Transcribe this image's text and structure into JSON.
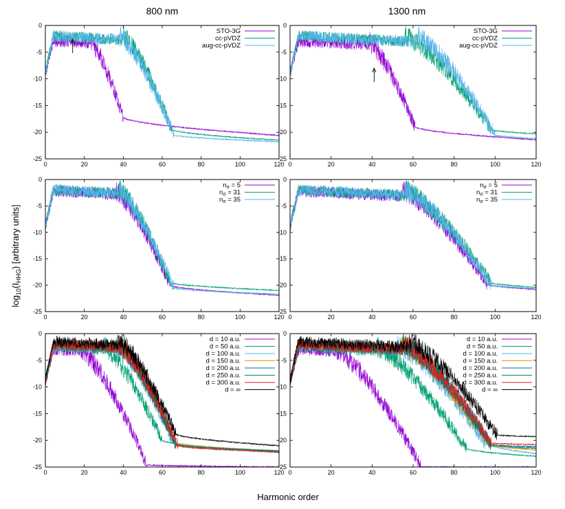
{
  "figure": {
    "column_titles": [
      "800 nm",
      "1300 nm"
    ],
    "xlabel": "Harmonic order",
    "ylabel_main": "log",
    "ylabel_sub": "10",
    "ylabel_paren_open": "(I",
    "ylabel_sub2": "HHG",
    "ylabel_rest": ") [arbitrary units]"
  },
  "chart_data": [
    {
      "type": "line",
      "panel": "top-left",
      "wavelength": "800 nm",
      "xlim": [
        0,
        120
      ],
      "ylim": [
        -25,
        0
      ],
      "xticks": [
        0,
        20,
        40,
        60,
        80,
        100,
        120
      ],
      "yticks": [
        0,
        -5,
        -10,
        -15,
        -20,
        -25
      ],
      "legend_position": "top-right",
      "arrow_at": [
        14,
        -2.6
      ],
      "series": [
        {
          "name": "STO-3G",
          "color": "#9400d3",
          "cutoff": 23,
          "start": -3.0,
          "floor": -17.2,
          "end": -20.6,
          "dropEnd": 40
        },
        {
          "name": "cc-pVDZ",
          "color": "#009e73",
          "cutoff": 40,
          "start": -2.0,
          "floor": -19.5,
          "end": -21.5,
          "dropEnd": 65
        },
        {
          "name": "aug-cc-pVDZ",
          "color": "#56b4e9",
          "cutoff": 38,
          "start": -2.0,
          "floor": -20.5,
          "end": -21.8,
          "dropEnd": 66
        }
      ]
    },
    {
      "type": "line",
      "panel": "top-right",
      "wavelength": "1300 nm",
      "xlim": [
        0,
        120
      ],
      "ylim": [
        -25,
        0
      ],
      "xticks": [
        0,
        20,
        40,
        60,
        80,
        100,
        120
      ],
      "yticks": [
        0,
        -5,
        -10,
        -15,
        -20,
        -25
      ],
      "legend_position": "top-right",
      "arrow_at": [
        41,
        -8.0
      ],
      "series": [
        {
          "name": "STO-3G",
          "color": "#9400d3",
          "cutoff": 38,
          "start": -3.0,
          "floor": -19.0,
          "end": -21.4,
          "dropEnd": 61
        },
        {
          "name": "cc-pVDZ",
          "color": "#009e73",
          "cutoff": 56,
          "start": -2.0,
          "floor": -19.5,
          "end": -20.3,
          "dropEnd": 98
        },
        {
          "name": "aug-cc-pVDZ",
          "color": "#56b4e9",
          "cutoff": 62,
          "start": -2.0,
          "floor": -20.5,
          "end": -21.2,
          "dropEnd": 100
        }
      ]
    },
    {
      "type": "line",
      "panel": "middle-left",
      "wavelength": "800 nm",
      "xlim": [
        0,
        120
      ],
      "ylim": [
        -25,
        0
      ],
      "xticks": [
        0,
        20,
        40,
        60,
        80,
        100,
        120
      ],
      "yticks": [
        0,
        -5,
        -10,
        -15,
        -20,
        -25
      ],
      "legend_position": "top-right",
      "series": [
        {
          "name": "nσ = 5",
          "label_main": "n",
          "label_sub": "σ",
          "label_rest": " = 5",
          "color": "#9400d3",
          "cutoff": 36,
          "start": -2.2,
          "floor": -20.0,
          "end": -21.9,
          "dropEnd": 64
        },
        {
          "name": "nσ = 31",
          "label_main": "n",
          "label_sub": "σ",
          "label_rest": " = 31",
          "color": "#009e73",
          "cutoff": 38,
          "start": -2.0,
          "floor": -19.5,
          "end": -21.0,
          "dropEnd": 64
        },
        {
          "name": "nσ = 35",
          "label_main": "n",
          "label_sub": "σ",
          "label_rest": " = 35",
          "color": "#56b4e9",
          "cutoff": 37,
          "start": -2.0,
          "floor": -20.5,
          "end": -21.7,
          "dropEnd": 66
        }
      ]
    },
    {
      "type": "line",
      "panel": "middle-right",
      "wavelength": "1300 nm",
      "xlim": [
        0,
        120
      ],
      "ylim": [
        -25,
        0
      ],
      "xticks": [
        0,
        20,
        40,
        60,
        80,
        100,
        120
      ],
      "yticks": [
        0,
        -5,
        -10,
        -15,
        -20,
        -25
      ],
      "legend_position": "top-right",
      "series": [
        {
          "name": "nσ = 5",
          "label_main": "n",
          "label_sub": "σ",
          "label_rest": " = 5",
          "color": "#9400d3",
          "cutoff": 55,
          "start": -2.2,
          "floor": -19.8,
          "end": -20.8,
          "dropEnd": 96
        },
        {
          "name": "nσ = 31",
          "label_main": "n",
          "label_sub": "σ",
          "label_rest": " = 31",
          "color": "#009e73",
          "cutoff": 56,
          "start": -2.0,
          "floor": -19.5,
          "end": -20.4,
          "dropEnd": 98
        },
        {
          "name": "nσ = 35",
          "label_main": "n",
          "label_sub": "σ",
          "label_rest": " = 35",
          "color": "#56b4e9",
          "cutoff": 56,
          "start": -2.0,
          "floor": -20.0,
          "end": -20.6,
          "dropEnd": 98
        }
      ]
    },
    {
      "type": "line",
      "panel": "bottom-left",
      "wavelength": "800 nm",
      "xlim": [
        0,
        120
      ],
      "ylim": [
        -25,
        0
      ],
      "xticks": [
        0,
        20,
        40,
        60,
        80,
        100,
        120
      ],
      "yticks": [
        0,
        -5,
        -10,
        -15,
        -20,
        -25
      ],
      "legend_position": "top-right",
      "series": [
        {
          "name": "d = 10 a.u.",
          "color": "#9400d3",
          "cutoff": 18,
          "start": -3.0,
          "floor": -24.6,
          "end": -25.0,
          "dropEnd": 52
        },
        {
          "name": "d = 50 a.u.",
          "color": "#009e73",
          "cutoff": 30,
          "start": -2.5,
          "floor": -20.0,
          "end": -22.2,
          "dropEnd": 60
        },
        {
          "name": "d = 100 a.u.",
          "color": "#56b4e9",
          "cutoff": 36,
          "start": -2.2,
          "floor": -20.5,
          "end": -22.0,
          "dropEnd": 66
        },
        {
          "name": "d = 150 a.u.",
          "color": "#e69f00",
          "cutoff": 37,
          "start": -2.0,
          "floor": -20.5,
          "end": -22.0,
          "dropEnd": 67
        },
        {
          "name": "d = 200 a.u.",
          "color": "#0072b2",
          "cutoff": 37,
          "start": -2.0,
          "floor": -20.8,
          "end": -22.0,
          "dropEnd": 67
        },
        {
          "name": "d = 250 a.u.",
          "color": "#008060",
          "cutoff": 37,
          "start": -2.0,
          "floor": -20.8,
          "end": -22.0,
          "dropEnd": 67
        },
        {
          "name": "d = 300 a.u.",
          "color": "#e41a1c",
          "cutoff": 37,
          "start": -2.0,
          "floor": -21.0,
          "end": -22.2,
          "dropEnd": 68
        },
        {
          "name": "d = ∞",
          "color": "#000000",
          "cutoff": 38,
          "start": -1.5,
          "floor": -18.8,
          "end": -21.0,
          "dropEnd": 67
        }
      ]
    },
    {
      "type": "line",
      "panel": "bottom-right",
      "wavelength": "1300 nm",
      "xlim": [
        0,
        120
      ],
      "ylim": [
        -25,
        0
      ],
      "xticks": [
        0,
        20,
        40,
        60,
        80,
        100,
        120
      ],
      "yticks": [
        0,
        -5,
        -10,
        -15,
        -20,
        -25
      ],
      "legend_position": "top-right",
      "series": [
        {
          "name": "d = 10 a.u.",
          "color": "#9400d3",
          "cutoff": 22,
          "start": -3.0,
          "floor": -25.0,
          "end": -25.0,
          "dropEnd": 64
        },
        {
          "name": "d = 50 a.u.",
          "color": "#009e73",
          "cutoff": 42,
          "start": -2.5,
          "floor": -21.5,
          "end": -23.0,
          "dropEnd": 86
        },
        {
          "name": "d = 100 a.u.",
          "color": "#56b4e9",
          "cutoff": 52,
          "start": -2.2,
          "floor": -20.5,
          "end": -22.5,
          "dropEnd": 95
        },
        {
          "name": "d = 150 a.u.",
          "color": "#e69f00",
          "cutoff": 54,
          "start": -2.0,
          "floor": -20.8,
          "end": -21.8,
          "dropEnd": 97
        },
        {
          "name": "d = 200 a.u.",
          "color": "#0072b2",
          "cutoff": 55,
          "start": -2.0,
          "floor": -20.8,
          "end": -21.2,
          "dropEnd": 98
        },
        {
          "name": "d = 250 a.u.",
          "color": "#008060",
          "cutoff": 55,
          "start": -2.0,
          "floor": -20.8,
          "end": -21.5,
          "dropEnd": 98
        },
        {
          "name": "d = 300 a.u.",
          "color": "#e41a1c",
          "cutoff": 55,
          "start": -2.0,
          "floor": -20.5,
          "end": -20.8,
          "dropEnd": 98
        },
        {
          "name": "d = ∞",
          "color": "#000000",
          "cutoff": 58,
          "start": -1.5,
          "floor": -19.0,
          "end": -19.3,
          "dropEnd": 101
        }
      ]
    }
  ]
}
